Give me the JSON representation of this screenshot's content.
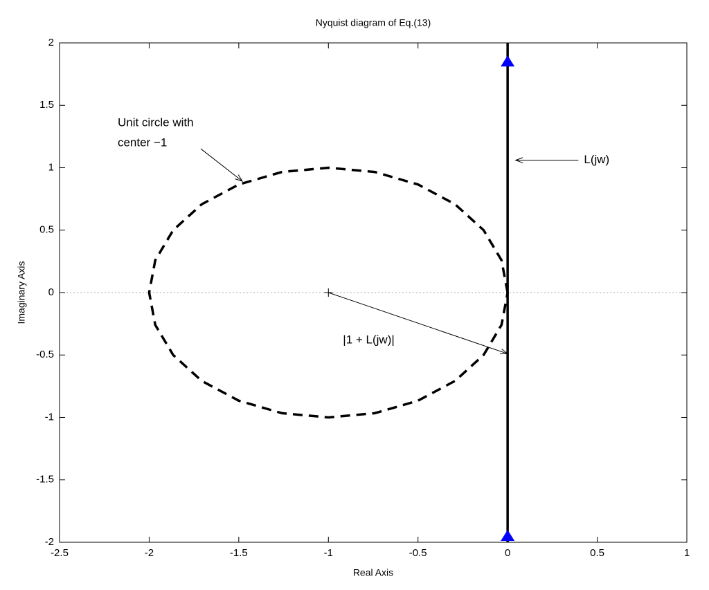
{
  "chart_data": {
    "type": "nyquist",
    "title": "Nyquist diagram of Eq.(13)",
    "xlabel": "Real Axis",
    "ylabel": "Imaginary Axis",
    "xlim": [
      -2.5,
      1
    ],
    "ylim": [
      -2,
      2
    ],
    "xticks": [
      -2.5,
      -2,
      -1.5,
      -1,
      -0.5,
      0,
      0.5,
      1
    ],
    "yticks": [
      -2,
      -1.5,
      -1,
      -0.5,
      0,
      0.5,
      1,
      1.5,
      2
    ],
    "zero_line": true,
    "series": [
      {
        "style": "dashed",
        "color": "#000000",
        "x": [
          0,
          -0.034,
          -0.134,
          -0.293,
          -0.5,
          -0.741,
          -1,
          -1.259,
          -1.5,
          -1.707,
          -1.866,
          -1.966,
          -2,
          -1.966,
          -1.866,
          -1.707,
          -1.5,
          -1.259,
          -1,
          -0.741,
          -0.5,
          -0.293,
          -0.134,
          -0.034,
          0
        ],
        "values": [
          0,
          0.259,
          0.5,
          0.707,
          0.866,
          0.966,
          1,
          0.966,
          0.866,
          0.707,
          0.5,
          0.259,
          0,
          -0.259,
          -0.5,
          -0.707,
          -0.866,
          -0.966,
          -1,
          -0.966,
          -0.866,
          -0.707,
          -0.5,
          -0.259,
          0
        ]
      },
      {
        "style": "solid",
        "color": "#000000",
        "x": [
          0,
          0
        ],
        "values": [
          -2,
          2
        ]
      },
      {
        "style": "plus",
        "color": "#000000",
        "x": [
          -1
        ],
        "values": [
          0
        ]
      }
    ],
    "markers": {
      "color": "#0000ff",
      "x": [
        0,
        0
      ],
      "values": [
        1.85,
        -1.95
      ]
    },
    "annotations": [
      {
        "lines": [
          "Unit circle with",
          "center −1"
        ],
        "from": [
          -1.712,
          1.152
        ],
        "to": [
          -1.48,
          0.892
        ]
      },
      {
        "lines": [
          "L(jw)"
        ],
        "from": [
          0.395,
          1.06
        ],
        "to": [
          0.045,
          1.06
        ]
      },
      {
        "lines": [
          "|1 + L(jw)|"
        ],
        "from": [
          -1,
          0
        ],
        "to": [
          0,
          -0.49
        ]
      }
    ]
  }
}
